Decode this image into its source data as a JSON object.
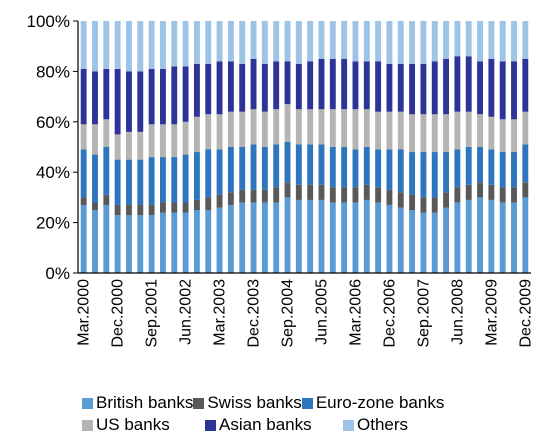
{
  "chart_data": {
    "type": "bar",
    "stacked": true,
    "percent": true,
    "ylim": [
      0,
      100
    ],
    "yticks": [
      "0%",
      "20%",
      "40%",
      "60%",
      "80%",
      "100%"
    ],
    "xtick_labels": [
      "Mar.2000",
      "Dec.2000",
      "Sep.2001",
      "Jun.2002",
      "Mar.2003",
      "Dec.2003",
      "Sep.2004",
      "Jun.2005",
      "Mar.2006",
      "Dec.2006",
      "Sep.2007",
      "Jun.2008",
      "Mar.2009",
      "Dec.2009"
    ],
    "categories": [
      "Mar.2000",
      "Jun.2000",
      "Sep.2000",
      "Dec.2000",
      "Mar.2001",
      "Jun.2001",
      "Sep.2001",
      "Dec.2001",
      "Mar.2002",
      "Jun.2002",
      "Sep.2002",
      "Dec.2002",
      "Mar.2003",
      "Jun.2003",
      "Sep.2003",
      "Dec.2003",
      "Mar.2004",
      "Jun.2004",
      "Sep.2004",
      "Dec.2004",
      "Mar.2005",
      "Jun.2005",
      "Sep.2005",
      "Dec.2005",
      "Mar.2006",
      "Jun.2006",
      "Sep.2006",
      "Dec.2006",
      "Mar.2007",
      "Jun.2007",
      "Sep.2007",
      "Dec.2007",
      "Mar.2008",
      "Jun.2008",
      "Sep.2008",
      "Dec.2008",
      "Mar.2009",
      "Jun.2009",
      "Sep.2009",
      "Dec.2009"
    ],
    "series": [
      {
        "name": "British banks",
        "color": "#5b9bd5",
        "values": [
          27,
          25,
          27,
          23,
          23,
          23,
          23,
          24,
          24,
          24,
          25,
          25,
          26,
          27,
          28,
          28,
          28,
          28,
          30,
          29,
          29,
          29,
          28,
          28,
          28,
          29,
          28,
          27,
          26,
          25,
          24,
          24,
          26,
          28,
          29,
          30,
          29,
          28,
          28,
          30
        ]
      },
      {
        "name": "Swiss banks",
        "color": "#595959",
        "values": [
          3,
          3,
          4,
          4,
          4,
          4,
          4,
          4,
          4,
          4,
          4,
          5,
          5,
          5,
          5,
          5,
          5,
          6,
          6,
          6,
          6,
          6,
          6,
          6,
          6,
          6,
          6,
          6,
          6,
          6,
          6,
          6,
          6,
          6,
          6,
          6,
          6,
          6,
          6,
          6
        ]
      },
      {
        "name": "Euro-zone banks",
        "color": "#2e75c0",
        "values": [
          19,
          19,
          19,
          18,
          18,
          18,
          19,
          18,
          18,
          19,
          19,
          19,
          18,
          18,
          17,
          18,
          17,
          17,
          16,
          16,
          16,
          16,
          16,
          16,
          15,
          15,
          15,
          16,
          17,
          17,
          18,
          18,
          16,
          15,
          15,
          14,
          14,
          14,
          14,
          15
        ]
      },
      {
        "name": "US banks",
        "color": "#b4b4b4",
        "values": [
          10,
          12,
          11,
          10,
          11,
          11,
          13,
          13,
          13,
          13,
          14,
          14,
          14,
          14,
          14,
          14,
          14,
          14,
          15,
          14,
          14,
          14,
          15,
          15,
          16,
          15,
          15,
          15,
          15,
          15,
          15,
          15,
          15,
          15,
          14,
          13,
          13,
          13,
          13,
          13
        ]
      },
      {
        "name": "Asian banks",
        "color": "#2d3397",
        "values": [
          22,
          21,
          20,
          26,
          24,
          24,
          22,
          22,
          23,
          22,
          21,
          20,
          21,
          20,
          19,
          20,
          19,
          19,
          17,
          18,
          19,
          20,
          20,
          20,
          19,
          19,
          20,
          19,
          19,
          20,
          20,
          21,
          22,
          22,
          22,
          21,
          23,
          23,
          23,
          21
        ]
      },
      {
        "name": "Others",
        "color": "#9dc3e6",
        "values": [
          19,
          20,
          19,
          19,
          20,
          20,
          19,
          19,
          18,
          18,
          17,
          17,
          16,
          16,
          17,
          15,
          17,
          16,
          16,
          17,
          16,
          15,
          15,
          15,
          16,
          16,
          16,
          17,
          17,
          17,
          17,
          16,
          15,
          14,
          14,
          16,
          15,
          16,
          16,
          15
        ]
      }
    ]
  }
}
